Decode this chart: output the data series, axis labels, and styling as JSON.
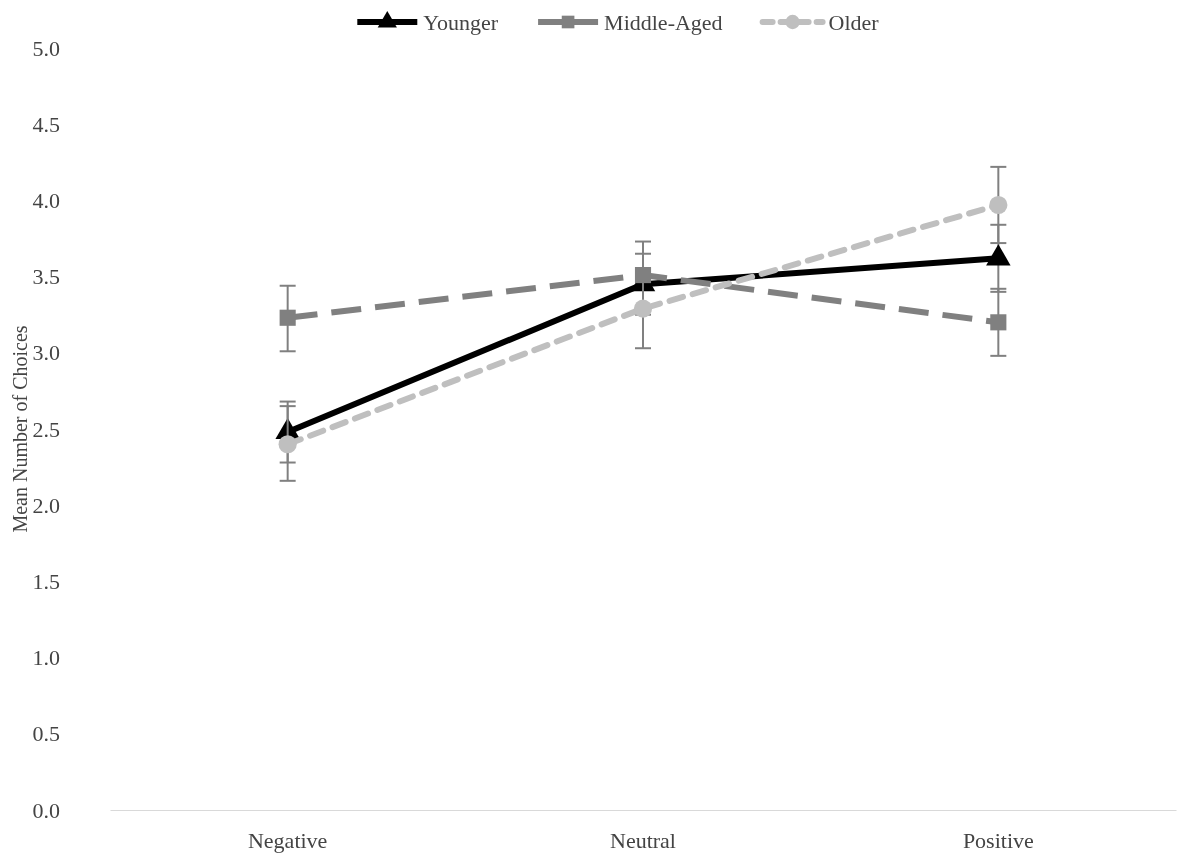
{
  "chart_data": {
    "type": "line",
    "ylabel": "Mean Number of Choices",
    "categories": [
      "Negative",
      "Neutral",
      "Positive"
    ],
    "ylim": [
      0,
      5
    ],
    "yticks": [
      {
        "value": 0,
        "label": "0.0"
      },
      {
        "value": 0.5,
        "label": "0.5"
      },
      {
        "value": 1,
        "label": "1.0"
      },
      {
        "value": 1.5,
        "label": "1.5"
      },
      {
        "value": 2,
        "label": "2.0"
      },
      {
        "value": 2.5,
        "label": "2.5"
      },
      {
        "value": 3,
        "label": "3.0"
      },
      {
        "value": 3.5,
        "label": "3.5"
      },
      {
        "value": 4,
        "label": "4.0"
      },
      {
        "value": 4.5,
        "label": "4.5"
      },
      {
        "value": 5,
        "label": "5.0"
      }
    ],
    "grid": false,
    "legend": "top",
    "series": [
      {
        "name": "Younger",
        "color": "#000000",
        "values": [
          2.48,
          3.45,
          3.62
        ],
        "errors": [
          [
            2.28,
            2.68
          ],
          [
            3.25,
            3.65
          ],
          [
            3.4,
            3.84
          ]
        ],
        "marker": "triangle",
        "line_style": "solid"
      },
      {
        "name": "Middle-Aged",
        "color": "#808080",
        "values": [
          3.23,
          3.51,
          3.2
        ],
        "errors": [
          [
            3.01,
            3.44
          ],
          [
            3.51,
            3.73
          ],
          [
            2.98,
            3.42
          ]
        ],
        "marker": "square",
        "line_style": "dashed"
      },
      {
        "name": "Older",
        "color": "#bfbfbf",
        "values": [
          2.4,
          3.29,
          3.97
        ],
        "errors": [
          [
            2.16,
            2.65
          ],
          [
            3.03,
            3.55
          ],
          [
            3.72,
            4.22
          ]
        ],
        "marker": "circle",
        "line_style": "dotted"
      }
    ]
  }
}
